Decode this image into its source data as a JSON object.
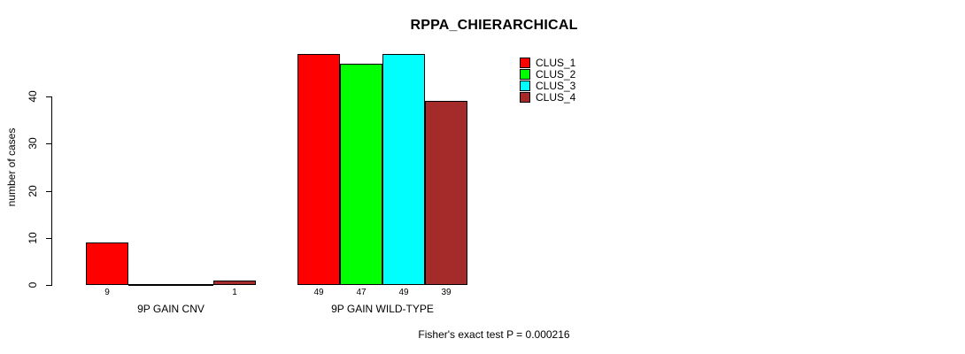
{
  "title": "RPPA_CHIERARCHICAL",
  "chart_data": {
    "type": "bar",
    "title": "RPPA_CHIERARCHICAL",
    "ylabel": "number of cases",
    "xlabel": "",
    "ylim": [
      0,
      40
    ],
    "yticks": [
      0,
      10,
      20,
      30,
      40
    ],
    "grid": false,
    "legend_position": "top-right",
    "categories": [
      "9P GAIN CNV",
      "9P GAIN WILD-TYPE"
    ],
    "series": [
      {
        "name": "CLUS_1",
        "color": "#FF0000",
        "values": [
          9,
          49
        ]
      },
      {
        "name": "CLUS_2",
        "color": "#00FF00",
        "values": [
          0,
          47
        ]
      },
      {
        "name": "CLUS_3",
        "color": "#00FFFF",
        "values": [
          0,
          49
        ]
      },
      {
        "name": "CLUS_4",
        "color": "#A52A2A",
        "values": [
          1,
          39
        ]
      }
    ],
    "bar_value_labels": [
      [
        "9",
        "",
        "",
        "1"
      ],
      [
        "49",
        "47",
        "49",
        "39"
      ]
    ],
    "annotation": "Fisher's exact test P = 0.000216"
  }
}
